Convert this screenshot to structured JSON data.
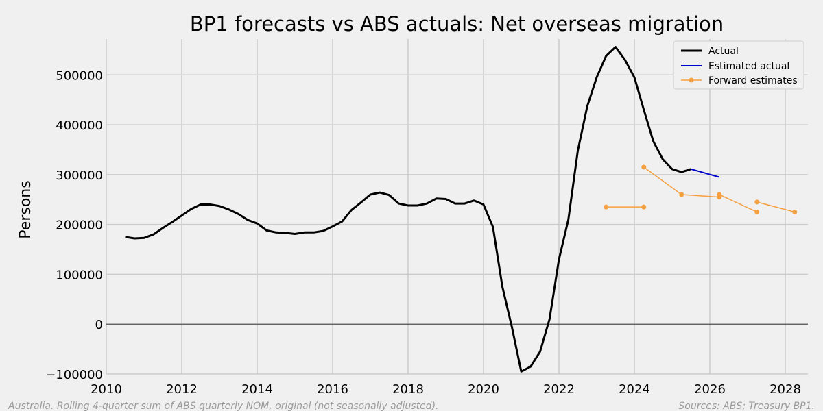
{
  "chart_data": {
    "type": "line",
    "title": "BP1 forecasts vs ABS actuals: Net overseas migration",
    "xlabel": "",
    "ylabel": "Persons",
    "xlim": [
      2010,
      2028.6
    ],
    "ylim": [
      -100000,
      565000
    ],
    "x_ticks": [
      2010,
      2012,
      2014,
      2016,
      2018,
      2020,
      2022,
      2024,
      2026,
      2028
    ],
    "y_ticks": [
      -100000,
      0,
      100000,
      200000,
      300000,
      400000,
      500000
    ],
    "y_tick_labels": [
      "−100000",
      "0",
      "100000",
      "200000",
      "300000",
      "400000",
      "500000"
    ],
    "grid": true,
    "legend_position": "top-right",
    "series": [
      {
        "name": "Actual",
        "color": "#000000",
        "points": [
          [
            2010.5,
            175000
          ],
          [
            2010.75,
            172000
          ],
          [
            2011.0,
            173000
          ],
          [
            2011.25,
            180000
          ],
          [
            2011.5,
            193000
          ],
          [
            2011.75,
            205000
          ],
          [
            2012.0,
            218000
          ],
          [
            2012.25,
            231000
          ],
          [
            2012.5,
            240000
          ],
          [
            2012.75,
            240000
          ],
          [
            2013.0,
            237000
          ],
          [
            2013.25,
            230000
          ],
          [
            2013.5,
            221000
          ],
          [
            2013.75,
            209000
          ],
          [
            2014.0,
            202000
          ],
          [
            2014.25,
            188000
          ],
          [
            2014.5,
            184000
          ],
          [
            2014.75,
            183000
          ],
          [
            2015.0,
            181000
          ],
          [
            2015.25,
            184000
          ],
          [
            2015.5,
            184000
          ],
          [
            2015.75,
            187000
          ],
          [
            2016.0,
            196000
          ],
          [
            2016.25,
            206000
          ],
          [
            2016.5,
            229000
          ],
          [
            2016.75,
            244000
          ],
          [
            2017.0,
            260000
          ],
          [
            2017.25,
            264000
          ],
          [
            2017.5,
            259000
          ],
          [
            2017.75,
            242000
          ],
          [
            2018.0,
            238000
          ],
          [
            2018.25,
            238000
          ],
          [
            2018.5,
            242000
          ],
          [
            2018.75,
            252000
          ],
          [
            2019.0,
            251000
          ],
          [
            2019.25,
            242000
          ],
          [
            2019.5,
            242000
          ],
          [
            2019.75,
            248000
          ],
          [
            2020.0,
            240000
          ],
          [
            2020.25,
            195000
          ],
          [
            2020.5,
            75000
          ],
          [
            2020.75,
            -5000
          ],
          [
            2021.0,
            -95000
          ],
          [
            2021.25,
            -85000
          ],
          [
            2021.5,
            -55000
          ],
          [
            2021.75,
            10000
          ],
          [
            2022.0,
            130000
          ],
          [
            2022.25,
            210000
          ],
          [
            2022.5,
            348000
          ],
          [
            2022.75,
            437000
          ],
          [
            2023.0,
            495000
          ],
          [
            2023.25,
            538000
          ],
          [
            2023.5,
            556000
          ],
          [
            2023.75,
            530000
          ],
          [
            2024.0,
            495000
          ],
          [
            2024.25,
            430000
          ],
          [
            2024.5,
            367000
          ],
          [
            2024.75,
            331000
          ],
          [
            2025.0,
            311000
          ],
          [
            2025.25,
            305000
          ],
          [
            2025.5,
            311000
          ]
        ]
      },
      {
        "name": "Estimated actual",
        "color": "#0000cc",
        "points": [
          [
            2025.5,
            311000
          ],
          [
            2026.25,
            295000
          ]
        ]
      },
      {
        "name": "Forward estimates",
        "color": "#f5a040",
        "segments": [
          [
            [
              2023.25,
              235000
            ],
            [
              2024.25,
              235000
            ]
          ],
          [
            [
              2024.25,
              315000
            ],
            [
              2025.25,
              260000
            ],
            [
              2026.25,
              255000
            ]
          ],
          [
            [
              2026.25,
              260000
            ],
            [
              2027.25,
              225000
            ]
          ],
          [
            [
              2027.25,
              245000
            ],
            [
              2028.25,
              225000
            ]
          ]
        ]
      }
    ],
    "footnote_left": "Australia. Rolling 4-quarter sum of ABS quarterly NOM, original (not seasonally adjusted).",
    "footnote_right": "Sources: ABS; Treasury BP1."
  }
}
